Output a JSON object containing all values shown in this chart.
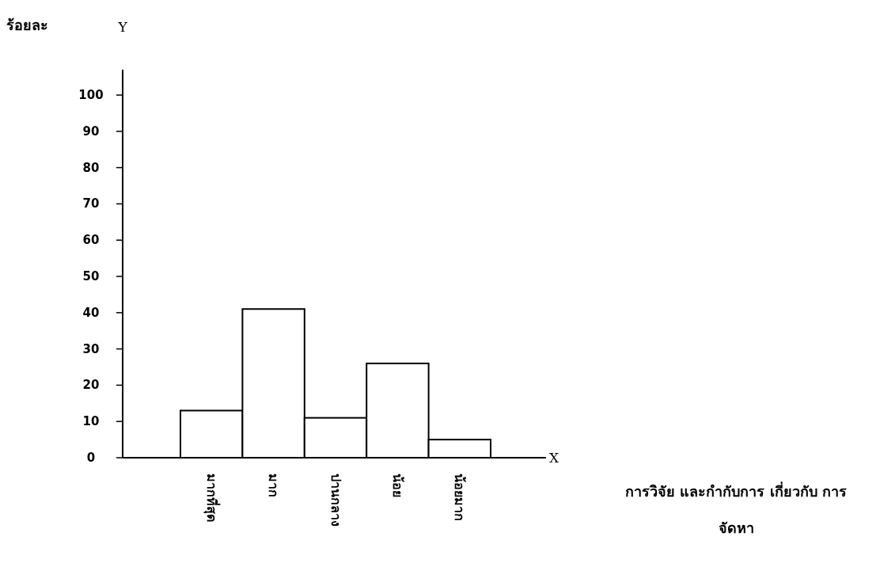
{
  "chart_data": {
    "type": "bar",
    "ylabel": "ร้อยละ",
    "categories": [
      "มากที่สุด",
      "มาก",
      "ปานกลาง",
      "น้อย",
      "น้อยมาก"
    ],
    "values": [
      13,
      41,
      11,
      26,
      5
    ],
    "color": "#ffffff",
    "ylim": [
      0,
      107
    ],
    "yticks": [
      0,
      10,
      20,
      30,
      40,
      50,
      60,
      70,
      80,
      90,
      100
    ],
    "grid": false,
    "annotations": [
      "Y",
      "X",
      "การวิจัย และกำกับการ เกี่ยวกับ การจัดหา"
    ]
  }
}
